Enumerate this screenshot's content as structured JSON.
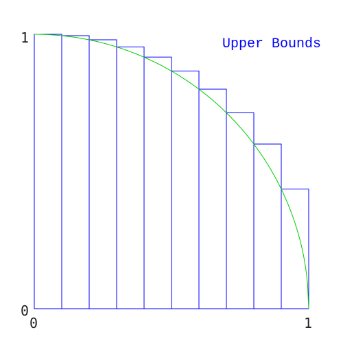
{
  "chart_data": {
    "type": "bar",
    "title": "Upper Bounds",
    "xlim": [
      0,
      1
    ],
    "ylim": [
      0,
      1
    ],
    "x_ticks": [
      "0",
      "1"
    ],
    "y_ticks": [
      "0",
      "1"
    ],
    "bar_edges": [
      0.0,
      0.1,
      0.2,
      0.3,
      0.4,
      0.5,
      0.6,
      0.7,
      0.8,
      0.9,
      1.0
    ],
    "values": [
      1.0,
      0.995,
      0.98,
      0.954,
      0.917,
      0.866,
      0.8,
      0.714,
      0.6,
      0.436
    ],
    "curve": "y = sqrt(1 - x^2)",
    "grid": false,
    "colors": {
      "bars": "#0000ff",
      "curve": "#00cc00",
      "title": "#0000ff",
      "axis_labels": "#222222"
    }
  }
}
